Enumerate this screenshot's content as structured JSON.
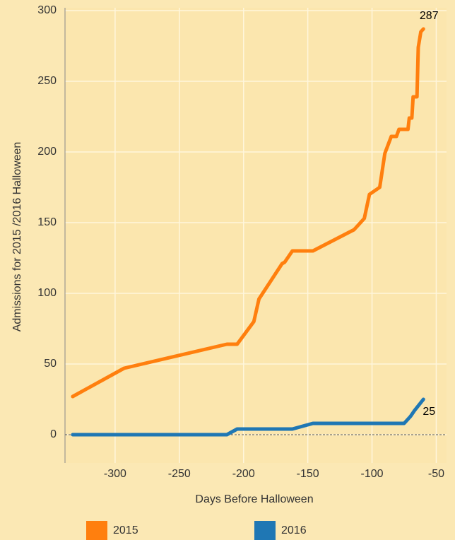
{
  "chart_data": {
    "type": "line",
    "x_label": "Days Before Halloween",
    "y_label": "Admissions for 2015 /2016 Halloween",
    "xlim": [
      -339,
      -42
    ],
    "ylim": [
      -20,
      302
    ],
    "xticks": [
      -300,
      -250,
      -200,
      -150,
      -100,
      -50
    ],
    "yticks": [
      0,
      50,
      100,
      150,
      200,
      250,
      300
    ],
    "grid": true,
    "legend": "bottom",
    "series": [
      {
        "name": "2015",
        "color": "#ff7f0e",
        "x": [
          -333,
          -293,
          -213,
          -205,
          -192,
          -188,
          -170,
          -168,
          -162,
          -146,
          -114,
          -106,
          -102,
          -94,
          -90,
          -85,
          -81,
          -79,
          -72,
          -71,
          -69,
          -68,
          -65,
          -64,
          -62,
          -60
        ],
        "values": [
          27,
          47,
          64,
          64,
          80,
          96,
          121,
          122,
          130,
          130,
          145,
          153,
          170,
          175,
          199,
          211,
          211,
          216,
          216,
          224,
          224,
          239,
          239,
          274,
          285,
          287
        ]
      },
      {
        "name": "2016",
        "color": "#1f77b4",
        "x": [
          -333,
          -213,
          -205,
          -162,
          -146,
          -75,
          -70,
          -67,
          -60
        ],
        "values": [
          0,
          0,
          4,
          4,
          8,
          8,
          13,
          17,
          25
        ]
      }
    ],
    "annotations": [
      {
        "text": "287",
        "x": -60,
        "y": 287
      },
      {
        "text": "25",
        "x": -60,
        "y": 25
      }
    ]
  }
}
